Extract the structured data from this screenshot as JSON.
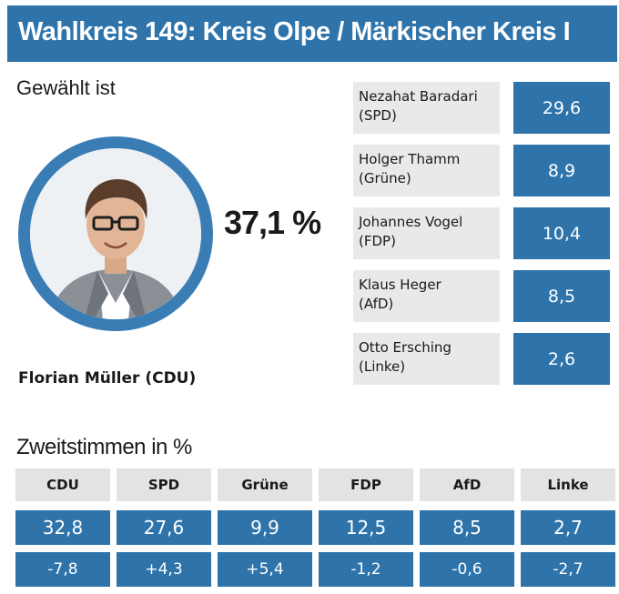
{
  "header": {
    "title": "Wahlkreis 149: Kreis Olpe / Märkischer Kreis I"
  },
  "winner": {
    "label": "Gewählt ist",
    "percent": "37,1 %",
    "name": "Florian Müller (CDU)"
  },
  "candidates": [
    {
      "name": "Nezahat Baradari",
      "party": "(SPD)",
      "value": "29,6"
    },
    {
      "name": "Holger Thamm",
      "party": "(Grüne)",
      "value": "8,9"
    },
    {
      "name": "Johannes Vogel",
      "party": "(FDP)",
      "value": "10,4"
    },
    {
      "name": "Klaus Heger",
      "party": "(AfD)",
      "value": "8,5"
    },
    {
      "name": "Otto Ersching",
      "party": "(Linke)",
      "value": "2,6"
    }
  ],
  "second_votes": {
    "label": "Zweitstimmen in %",
    "parties": [
      "CDU",
      "SPD",
      "Grüne",
      "FDP",
      "AfD",
      "Linke"
    ],
    "values": [
      "32,8",
      "27,6",
      "9,9",
      "12,5",
      "8,5",
      "2,7"
    ],
    "changes": [
      "-7,8",
      "+4,3",
      "+5,4",
      "-1,2",
      "-0,6",
      "-2,7"
    ]
  },
  "colors": {
    "accent": "#2e74ab",
    "ring": "#3a7db5",
    "label_bg": "#e9e9e9",
    "head_bg": "#e3e3e3"
  },
  "icons": {
    "portrait": "person-portrait-icon"
  }
}
